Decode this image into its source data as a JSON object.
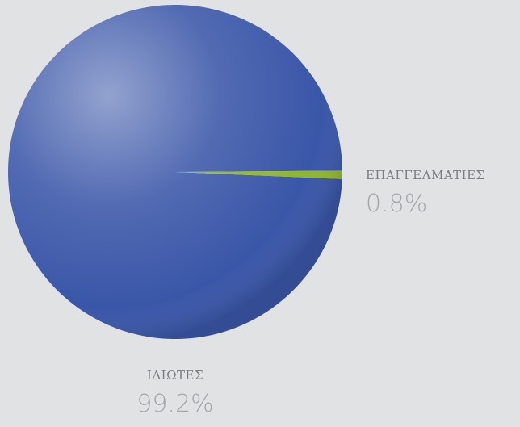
{
  "chart_data": {
    "type": "pie",
    "categories": [
      "ΙΔΙΩΤΕΣ",
      "ΕΠΑΓΓΕΛΜΑΤΙΕΣ"
    ],
    "values": [
      99.2,
      0.8
    ],
    "value_labels": [
      "99.2%",
      "0.8%"
    ],
    "colors": [
      "#3a56a8",
      "#8fb532"
    ]
  }
}
